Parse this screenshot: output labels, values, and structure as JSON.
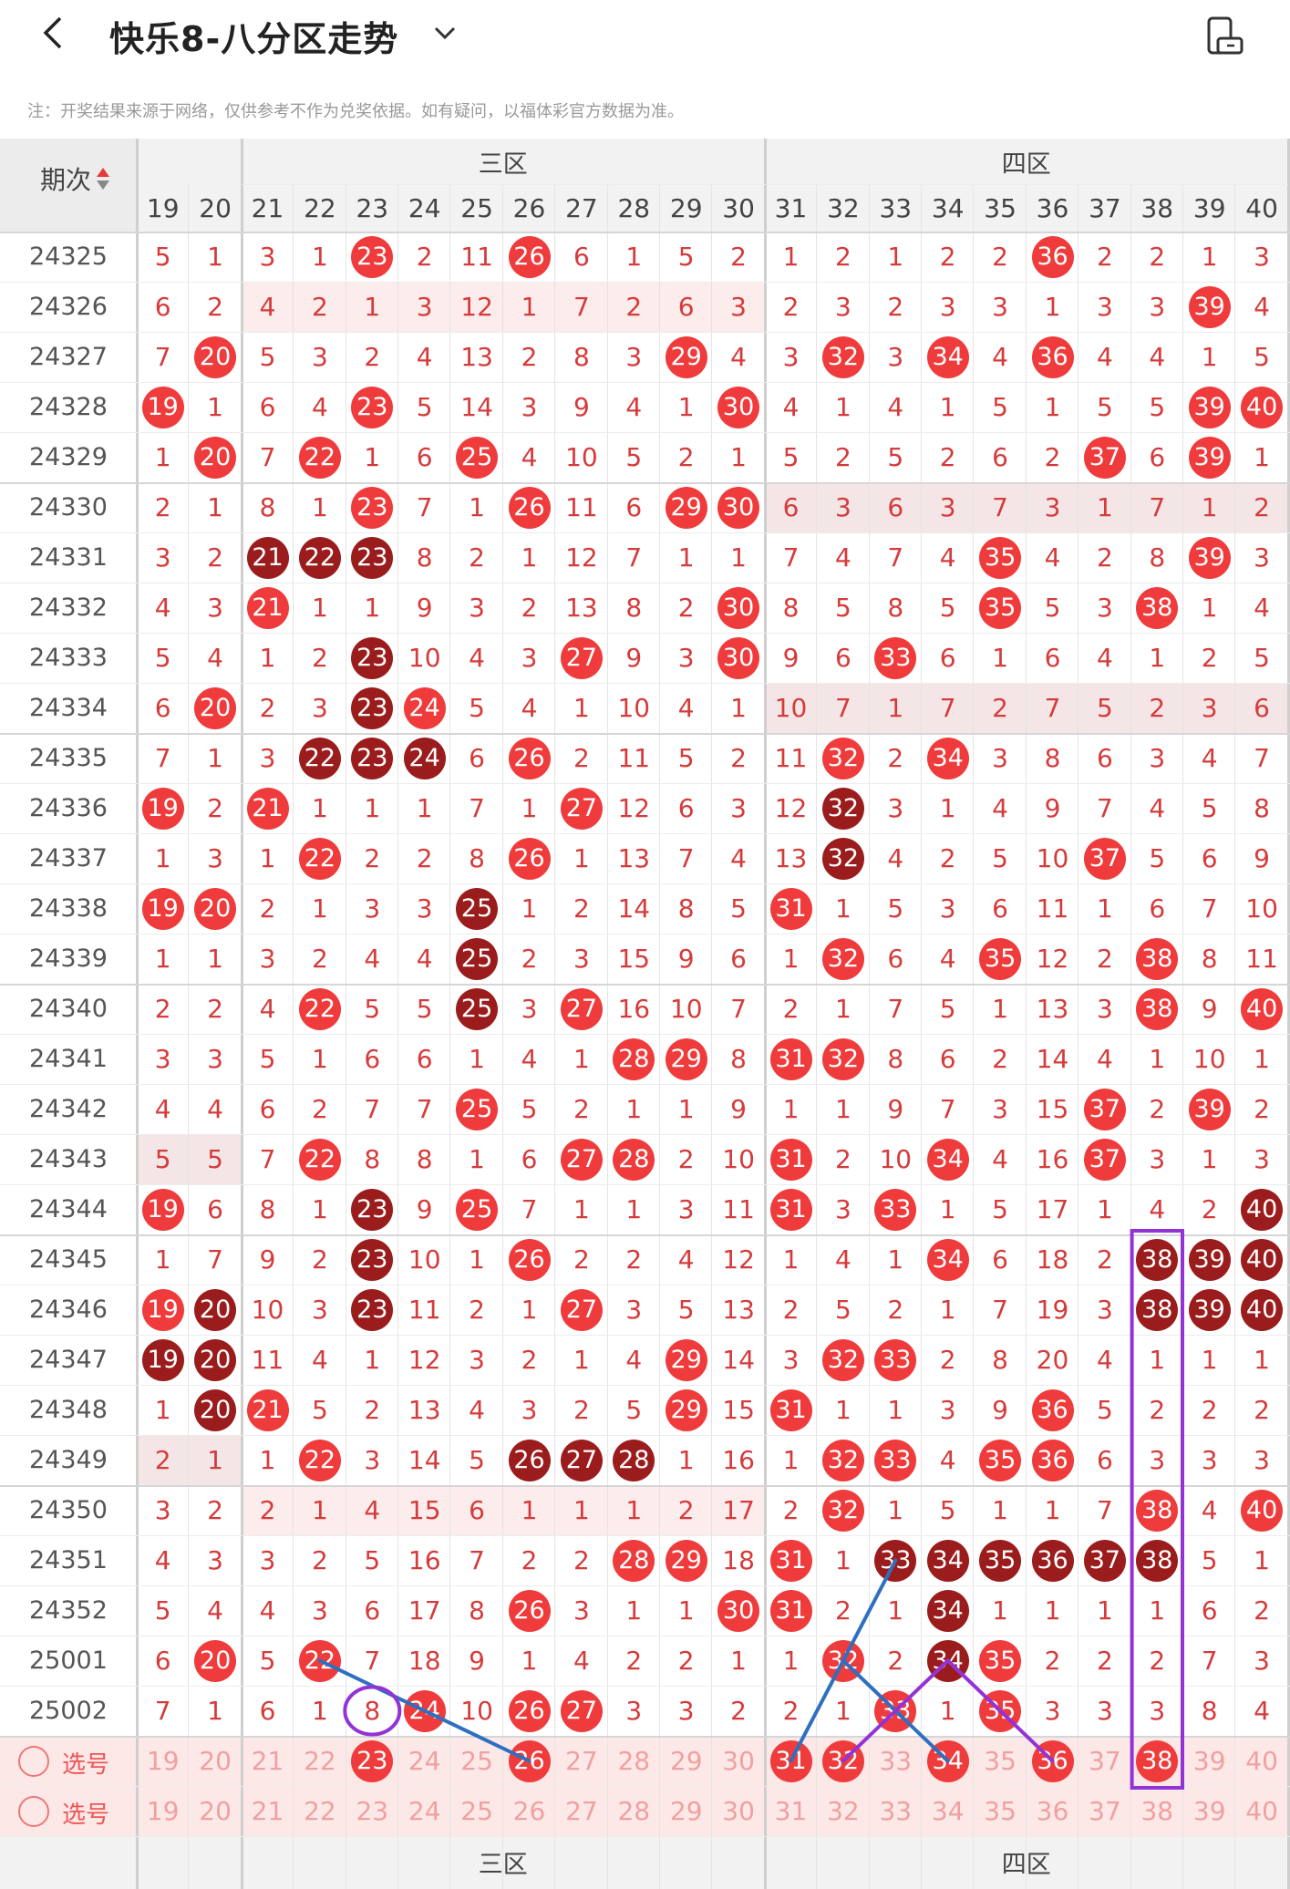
{
  "header": {
    "back_icon": "chevron-left-icon",
    "title": "快乐8-八分区走势",
    "dropdown_icon": "chevron-down-icon",
    "rotate_icon": "screen-rotate-icon"
  },
  "notice": "注：开奖结果来源于网络，仅供参考不作为兑奖依据。如有疑问，以福体彩官方数据为准。",
  "table": {
    "issue_header": "期次",
    "zones": [
      {
        "label": "三区"
      },
      {
        "label": "四区"
      }
    ],
    "columns": [
      "19",
      "20",
      "21",
      "22",
      "23",
      "24",
      "25",
      "26",
      "27",
      "28",
      "29",
      "30",
      "31",
      "32",
      "33",
      "34",
      "35",
      "36",
      "37",
      "38",
      "39",
      "40"
    ],
    "rows": [
      {
        "issue": "24325",
        "cells": [
          "5",
          "1",
          "3",
          "1",
          "23",
          "2",
          "11",
          "26",
          "6",
          "1",
          "5",
          "2",
          "1",
          "2",
          "1",
          "2",
          "2",
          "36",
          "2",
          "2",
          "1",
          "3"
        ]
      },
      {
        "issue": "24326",
        "cells": [
          "6",
          "2",
          "4",
          "2",
          "1",
          "3",
          "12",
          "1",
          "7",
          "2",
          "6",
          "3",
          "2",
          "3",
          "2",
          "3",
          "3",
          "1",
          "3",
          "3",
          "39",
          "4"
        ]
      },
      {
        "issue": "24327",
        "cells": [
          "7",
          "20",
          "5",
          "3",
          "2",
          "4",
          "13",
          "2",
          "8",
          "3",
          "29",
          "4",
          "3",
          "32",
          "3",
          "34",
          "4",
          "36",
          "4",
          "4",
          "1",
          "5"
        ]
      },
      {
        "issue": "24328",
        "cells": [
          "19",
          "1",
          "6",
          "4",
          "23",
          "5",
          "14",
          "3",
          "9",
          "4",
          "1",
          "30",
          "4",
          "1",
          "4",
          "1",
          "5",
          "1",
          "5",
          "5",
          "39",
          "40"
        ]
      },
      {
        "issue": "24329",
        "cells": [
          "1",
          "20",
          "7",
          "22",
          "1",
          "6",
          "25",
          "4",
          "10",
          "5",
          "2",
          "1",
          "5",
          "2",
          "5",
          "2",
          "6",
          "2",
          "37",
          "6",
          "39",
          "1"
        ]
      },
      {
        "issue": "24330",
        "cells": [
          "2",
          "1",
          "8",
          "1",
          "23",
          "7",
          "1",
          "26",
          "11",
          "6",
          "29",
          "30",
          "6",
          "3",
          "6",
          "3",
          "7",
          "3",
          "1",
          "7",
          "1",
          "2"
        ]
      },
      {
        "issue": "24331",
        "cells": [
          "3",
          "2",
          "21",
          "22",
          "23",
          "8",
          "2",
          "1",
          "12",
          "7",
          "1",
          "1",
          "7",
          "4",
          "7",
          "4",
          "35",
          "4",
          "2",
          "8",
          "39",
          "3"
        ]
      },
      {
        "issue": "24332",
        "cells": [
          "4",
          "3",
          "21",
          "1",
          "1",
          "9",
          "3",
          "2",
          "13",
          "8",
          "2",
          "30",
          "8",
          "5",
          "8",
          "5",
          "35",
          "5",
          "3",
          "38",
          "1",
          "4"
        ]
      },
      {
        "issue": "24333",
        "cells": [
          "5",
          "4",
          "1",
          "2",
          "23",
          "10",
          "4",
          "3",
          "27",
          "9",
          "3",
          "30",
          "9",
          "6",
          "33",
          "6",
          "1",
          "6",
          "4",
          "1",
          "2",
          "5"
        ]
      },
      {
        "issue": "24334",
        "cells": [
          "6",
          "20",
          "2",
          "3",
          "23",
          "24",
          "5",
          "4",
          "1",
          "10",
          "4",
          "1",
          "10",
          "7",
          "1",
          "7",
          "2",
          "7",
          "5",
          "2",
          "3",
          "6"
        ]
      },
      {
        "issue": "24335",
        "cells": [
          "7",
          "1",
          "3",
          "22",
          "23",
          "24",
          "6",
          "26",
          "2",
          "11",
          "5",
          "2",
          "11",
          "32",
          "2",
          "34",
          "3",
          "8",
          "6",
          "3",
          "4",
          "7"
        ]
      },
      {
        "issue": "24336",
        "cells": [
          "19",
          "2",
          "21",
          "1",
          "1",
          "1",
          "7",
          "1",
          "27",
          "12",
          "6",
          "3",
          "12",
          "32",
          "3",
          "1",
          "4",
          "9",
          "7",
          "4",
          "5",
          "8"
        ]
      },
      {
        "issue": "24337",
        "cells": [
          "1",
          "3",
          "1",
          "22",
          "2",
          "2",
          "8",
          "26",
          "1",
          "13",
          "7",
          "4",
          "13",
          "32",
          "4",
          "2",
          "5",
          "10",
          "37",
          "5",
          "6",
          "9"
        ]
      },
      {
        "issue": "24338",
        "cells": [
          "19",
          "20",
          "2",
          "1",
          "3",
          "3",
          "25",
          "1",
          "2",
          "14",
          "8",
          "5",
          "31",
          "1",
          "5",
          "3",
          "6",
          "11",
          "1",
          "6",
          "7",
          "10"
        ]
      },
      {
        "issue": "24339",
        "cells": [
          "1",
          "1",
          "3",
          "2",
          "4",
          "4",
          "25",
          "2",
          "3",
          "15",
          "9",
          "6",
          "1",
          "32",
          "6",
          "4",
          "35",
          "12",
          "2",
          "38",
          "8",
          "11"
        ]
      },
      {
        "issue": "24340",
        "cells": [
          "2",
          "2",
          "4",
          "22",
          "5",
          "5",
          "25",
          "3",
          "27",
          "16",
          "10",
          "7",
          "2",
          "1",
          "7",
          "5",
          "1",
          "13",
          "3",
          "38",
          "9",
          "40"
        ]
      },
      {
        "issue": "24341",
        "cells": [
          "3",
          "3",
          "5",
          "1",
          "6",
          "6",
          "1",
          "4",
          "1",
          "28",
          "29",
          "8",
          "31",
          "32",
          "8",
          "6",
          "2",
          "14",
          "4",
          "1",
          "10",
          "1"
        ]
      },
      {
        "issue": "24342",
        "cells": [
          "4",
          "4",
          "6",
          "2",
          "7",
          "7",
          "25",
          "5",
          "2",
          "1",
          "1",
          "9",
          "1",
          "1",
          "9",
          "7",
          "3",
          "15",
          "37",
          "2",
          "39",
          "2"
        ]
      },
      {
        "issue": "24343",
        "cells": [
          "5",
          "5",
          "7",
          "22",
          "8",
          "8",
          "1",
          "6",
          "27",
          "28",
          "2",
          "10",
          "31",
          "2",
          "10",
          "34",
          "4",
          "16",
          "37",
          "3",
          "1",
          "3"
        ]
      },
      {
        "issue": "24344",
        "cells": [
          "19",
          "6",
          "8",
          "1",
          "23",
          "9",
          "25",
          "7",
          "1",
          "1",
          "3",
          "11",
          "31",
          "3",
          "33",
          "1",
          "5",
          "17",
          "1",
          "4",
          "2",
          "40"
        ]
      },
      {
        "issue": "24345",
        "cells": [
          "1",
          "7",
          "9",
          "2",
          "23",
          "10",
          "1",
          "26",
          "2",
          "2",
          "4",
          "12",
          "1",
          "4",
          "1",
          "34",
          "6",
          "18",
          "2",
          "38",
          "39",
          "40"
        ]
      },
      {
        "issue": "24346",
        "cells": [
          "19",
          "20",
          "10",
          "3",
          "23",
          "11",
          "2",
          "1",
          "27",
          "3",
          "5",
          "13",
          "2",
          "5",
          "2",
          "1",
          "7",
          "19",
          "3",
          "38",
          "39",
          "40"
        ]
      },
      {
        "issue": "24347",
        "cells": [
          "19",
          "20",
          "11",
          "4",
          "1",
          "12",
          "3",
          "2",
          "1",
          "4",
          "29",
          "14",
          "3",
          "32",
          "33",
          "2",
          "8",
          "20",
          "4",
          "1",
          "1",
          "1"
        ]
      },
      {
        "issue": "24348",
        "cells": [
          "1",
          "20",
          "21",
          "5",
          "2",
          "13",
          "4",
          "3",
          "2",
          "5",
          "29",
          "15",
          "31",
          "1",
          "1",
          "3",
          "9",
          "36",
          "5",
          "2",
          "2",
          "2"
        ]
      },
      {
        "issue": "24349",
        "cells": [
          "2",
          "1",
          "1",
          "22",
          "3",
          "14",
          "5",
          "26",
          "27",
          "28",
          "1",
          "16",
          "1",
          "32",
          "33",
          "4",
          "35",
          "36",
          "6",
          "3",
          "3",
          "3"
        ]
      },
      {
        "issue": "24350",
        "cells": [
          "3",
          "2",
          "2",
          "1",
          "4",
          "15",
          "6",
          "1",
          "1",
          "1",
          "2",
          "17",
          "2",
          "32",
          "1",
          "5",
          "1",
          "1",
          "7",
          "38",
          "4",
          "40"
        ]
      },
      {
        "issue": "24351",
        "cells": [
          "4",
          "3",
          "3",
          "2",
          "5",
          "16",
          "7",
          "2",
          "2",
          "28",
          "29",
          "18",
          "31",
          "1",
          "33",
          "34",
          "35",
          "36",
          "37",
          "38",
          "5",
          "1"
        ]
      },
      {
        "issue": "24352",
        "cells": [
          "5",
          "4",
          "4",
          "3",
          "6",
          "17",
          "8",
          "26",
          "3",
          "1",
          "1",
          "30",
          "31",
          "2",
          "1",
          "34",
          "1",
          "1",
          "1",
          "1",
          "6",
          "2"
        ]
      },
      {
        "issue": "25001",
        "cells": [
          "6",
          "20",
          "5",
          "22",
          "7",
          "18",
          "9",
          "1",
          "4",
          "2",
          "2",
          "1",
          "1",
          "32",
          "2",
          "34",
          "35",
          "2",
          "2",
          "2",
          "7",
          "3"
        ]
      },
      {
        "issue": "25002",
        "cells": [
          "7",
          "1",
          "6",
          "1",
          "8",
          "24",
          "10",
          "26",
          "27",
          "3",
          "3",
          "2",
          "2",
          "1",
          "33",
          "1",
          "35",
          "3",
          "3",
          "3",
          "8",
          "4"
        ]
      }
    ],
    "selection_rows": [
      {
        "label": "选号",
        "cells": [
          "19",
          "20",
          "21",
          "22",
          "23",
          "24",
          "25",
          "26",
          "27",
          "28",
          "29",
          "30",
          "31",
          "32",
          "33",
          "34",
          "35",
          "36",
          "37",
          "38",
          "39",
          "40"
        ],
        "selected": [
          "23",
          "26",
          "31",
          "32",
          "34",
          "36",
          "38"
        ]
      },
      {
        "label": "选号",
        "cells": [
          "19",
          "20",
          "21",
          "22",
          "23",
          "24",
          "25",
          "26",
          "27",
          "28",
          "29",
          "30",
          "31",
          "32",
          "33",
          "34",
          "35",
          "36",
          "37",
          "38",
          "39",
          "40"
        ],
        "selected": []
      }
    ],
    "dark_balls": [
      "24331:21",
      "24331:22",
      "24331:23",
      "24333:23",
      "24334:23",
      "24335:22",
      "24335:23",
      "24335:24",
      "24336:32",
      "24337:32",
      "24338:25",
      "24339:25",
      "24340:25",
      "24344:23",
      "24344:40",
      "24345:23",
      "24345:38",
      "24345:39",
      "24345:40",
      "24346:20",
      "24346:23",
      "24346:38",
      "24346:39",
      "24346:40",
      "24347:19",
      "24347:20",
      "24348:20",
      "24349:26",
      "24349:27",
      "24349:28",
      "24351:33",
      "24351:34",
      "24351:35",
      "24351:36",
      "24351:37",
      "24351:38",
      "24352:34",
      "25001:34"
    ],
    "colors": {
      "ball_red": "#ef3b3b",
      "ball_dark": "#9b1c1c",
      "number_text": "#d63b3b"
    }
  }
}
